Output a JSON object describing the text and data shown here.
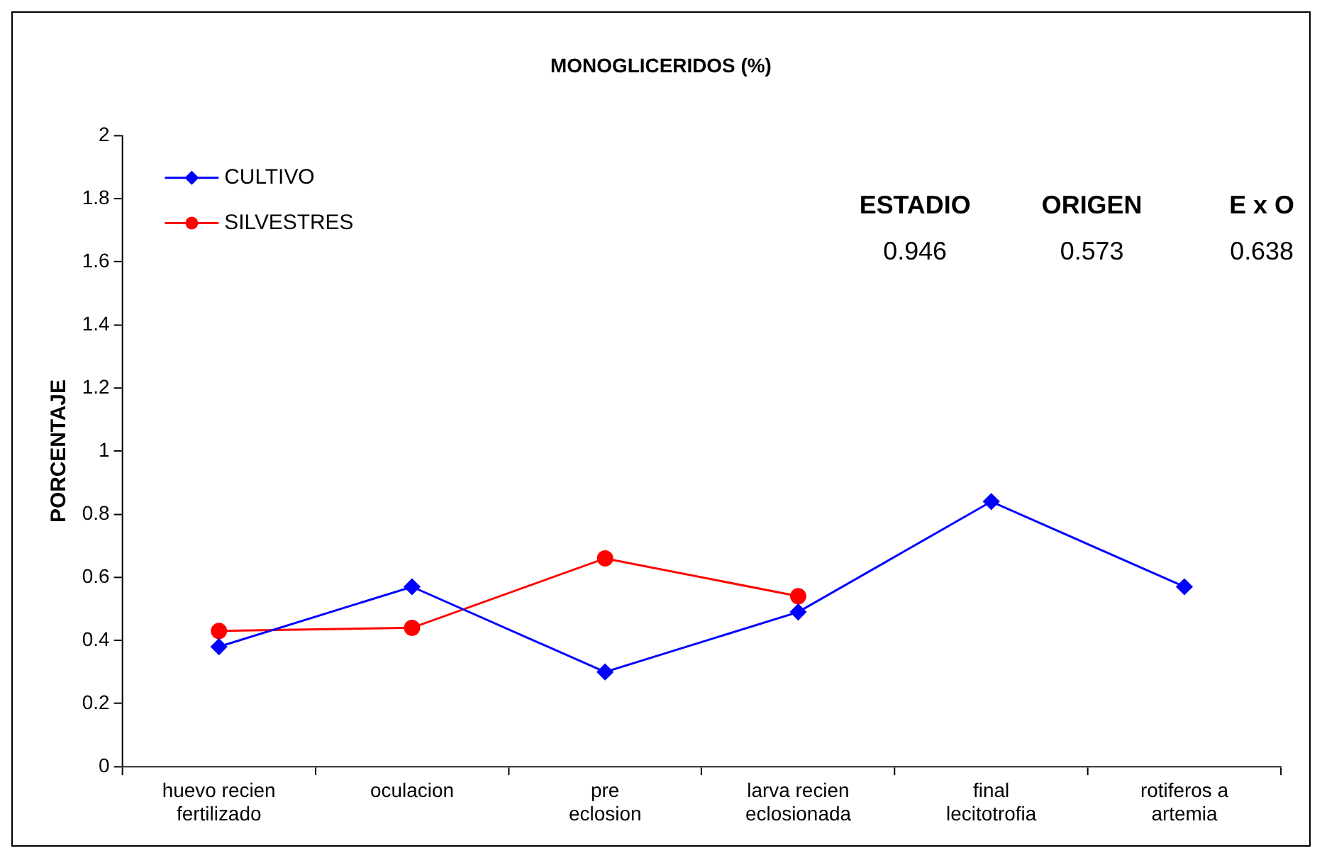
{
  "chart_data": {
    "type": "line",
    "title": "MONOGLICERIDOS (%)",
    "ylabel": "PORCENTAJE",
    "categories": [
      "huevo recien fertilizado",
      "oculacion",
      "pre eclosion",
      "larva recien eclosionada",
      "final lecitotrofia",
      "rotiferos a artemia"
    ],
    "series": [
      {
        "name": "CULTIVO",
        "color": "#0000ff",
        "marker": "diamond",
        "values": [
          0.38,
          0.57,
          0.3,
          0.49,
          0.84,
          0.57
        ]
      },
      {
        "name": "SILVESTRES",
        "color": "#ff0000",
        "marker": "circle",
        "values": [
          0.43,
          0.44,
          0.66,
          0.54,
          null,
          null
        ]
      }
    ],
    "ylim": [
      0,
      2
    ],
    "yticks": [
      0,
      0.2,
      0.4,
      0.6,
      0.8,
      1,
      1.2,
      1.4,
      1.6,
      1.8,
      2
    ],
    "grid": false,
    "legend": "top left",
    "annotations": [
      "ESTADIO",
      "ORIGEN",
      "E x O",
      "0.946",
      "0.573",
      "0.638"
    ]
  }
}
